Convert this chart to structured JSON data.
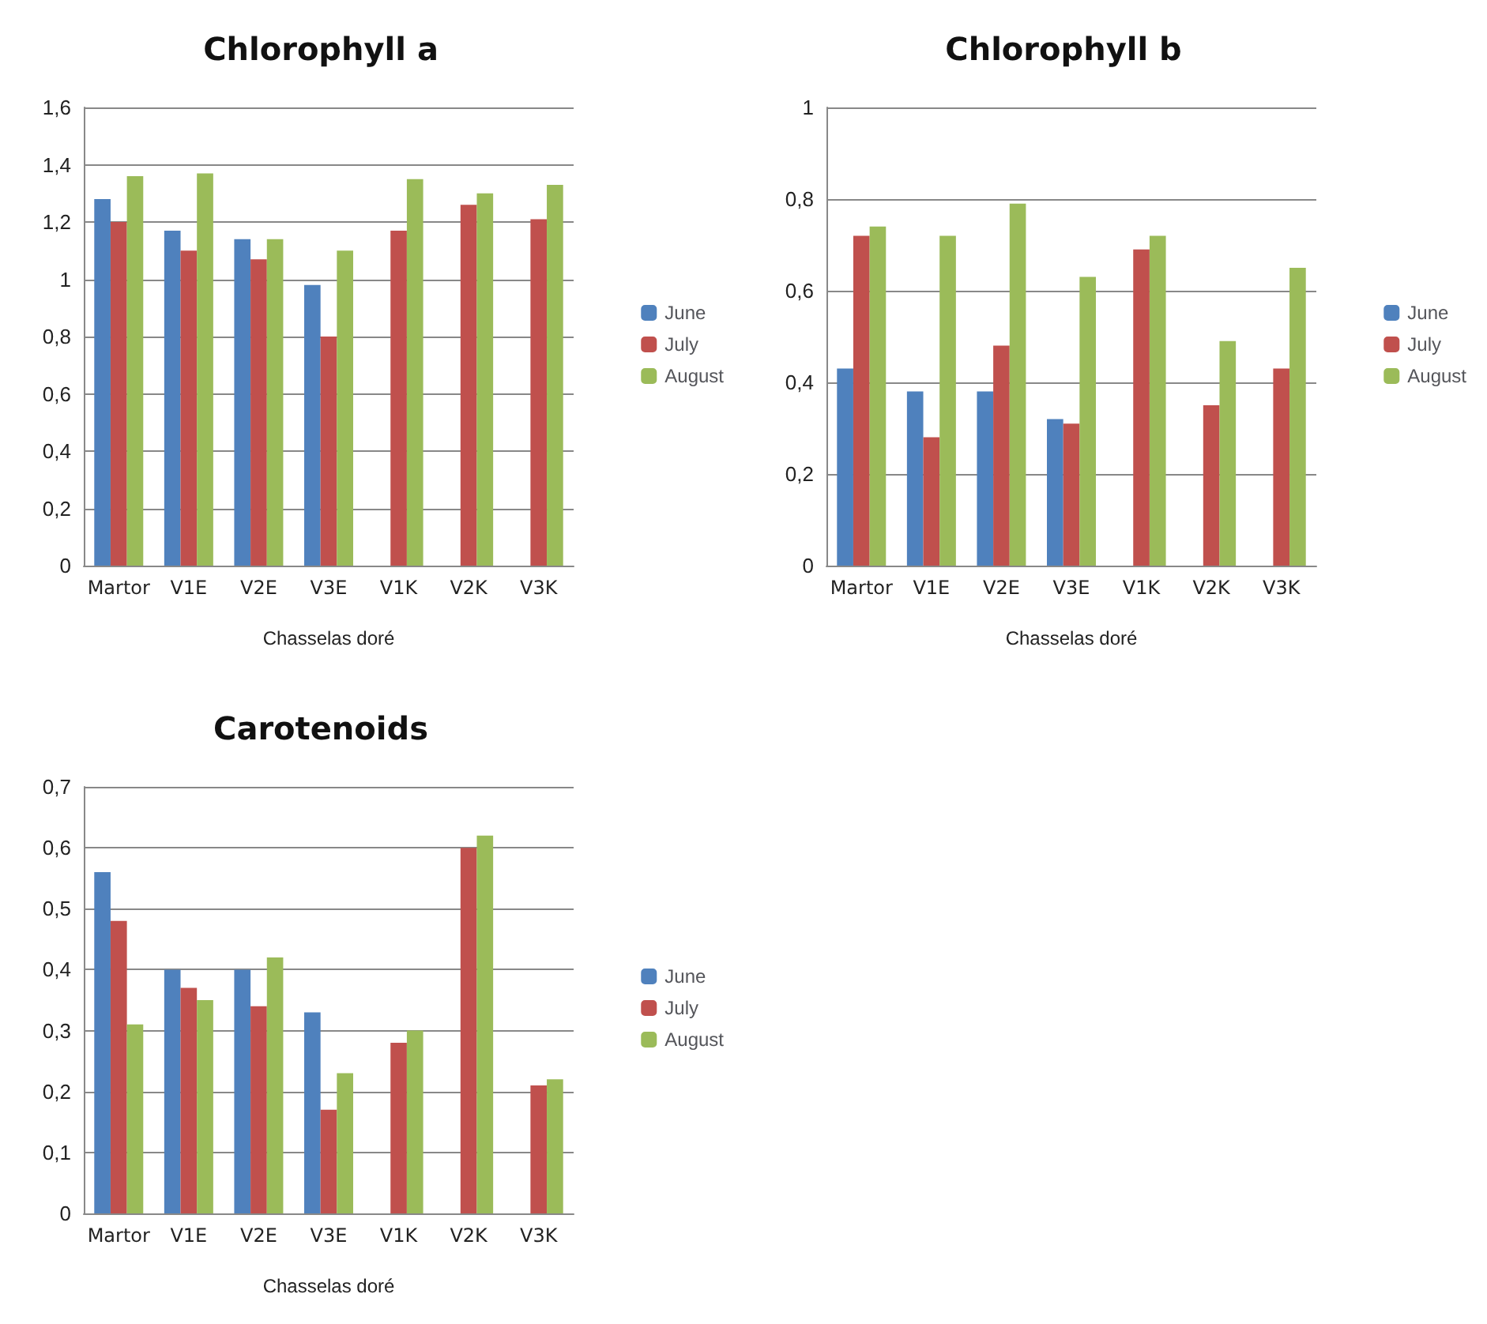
{
  "chart_data": [
    {
      "type": "bar",
      "title": "Chlorophyll a",
      "xlabel": "Chasselas doré",
      "categories": [
        "Martor",
        "V1E",
        "V2E",
        "V3E",
        "V1K",
        "V2K",
        "V3K"
      ],
      "series": [
        {
          "name": "June",
          "color": "#4f81bd",
          "values": [
            1.28,
            1.17,
            1.14,
            0.98,
            null,
            null,
            null
          ]
        },
        {
          "name": "July",
          "color": "#c0504d",
          "values": [
            1.2,
            1.1,
            1.07,
            0.8,
            1.17,
            1.26,
            1.21
          ]
        },
        {
          "name": "August",
          "color": "#9bbb59",
          "values": [
            1.36,
            1.37,
            1.14,
            1.1,
            1.35,
            1.3,
            1.33
          ]
        }
      ],
      "ylim": [
        0,
        1.6
      ],
      "yticks": [
        {
          "value": 0,
          "label": "0"
        },
        {
          "value": 0.2,
          "label": "0,2"
        },
        {
          "value": 0.4,
          "label": "0,4"
        },
        {
          "value": 0.6,
          "label": "0,6"
        },
        {
          "value": 0.8,
          "label": "0,8"
        },
        {
          "value": 1,
          "label": "1"
        },
        {
          "value": 1.2,
          "label": "1,2"
        },
        {
          "value": 1.4,
          "label": "1,4"
        },
        {
          "value": 1.6,
          "label": "1,6"
        }
      ],
      "grid": "y",
      "legend": "right"
    },
    {
      "type": "bar",
      "title": "Chlorophyll b",
      "xlabel": "Chasselas doré",
      "categories": [
        "Martor",
        "V1E",
        "V2E",
        "V3E",
        "V1K",
        "V2K",
        "V3K"
      ],
      "series": [
        {
          "name": "June",
          "color": "#4f81bd",
          "values": [
            0.43,
            0.38,
            0.38,
            0.32,
            null,
            null,
            null
          ]
        },
        {
          "name": "July",
          "color": "#c0504d",
          "values": [
            0.72,
            0.28,
            0.48,
            0.31,
            0.69,
            0.35,
            0.43
          ]
        },
        {
          "name": "August",
          "color": "#9bbb59",
          "values": [
            0.74,
            0.72,
            0.79,
            0.63,
            0.72,
            0.49,
            0.65
          ]
        }
      ],
      "ylim": [
        0,
        1
      ],
      "yticks": [
        {
          "value": 0,
          "label": "0"
        },
        {
          "value": 0.2,
          "label": "0,2"
        },
        {
          "value": 0.4,
          "label": "0,4"
        },
        {
          "value": 0.6,
          "label": "0,6"
        },
        {
          "value": 0.8,
          "label": "0,8"
        },
        {
          "value": 1,
          "label": "1"
        }
      ],
      "grid": "y",
      "legend": "right"
    },
    {
      "type": "bar",
      "title": "Carotenoids",
      "xlabel": "Chasselas doré",
      "categories": [
        "Martor",
        "V1E",
        "V2E",
        "V3E",
        "V1K",
        "V2K",
        "V3K"
      ],
      "series": [
        {
          "name": "June",
          "color": "#4f81bd",
          "values": [
            0.56,
            0.4,
            0.4,
            0.33,
            null,
            null,
            null
          ]
        },
        {
          "name": "July",
          "color": "#c0504d",
          "values": [
            0.48,
            0.37,
            0.34,
            0.17,
            0.28,
            0.6,
            0.21
          ]
        },
        {
          "name": "August",
          "color": "#9bbb59",
          "values": [
            0.31,
            0.35,
            0.42,
            0.23,
            0.3,
            0.62,
            0.22
          ]
        }
      ],
      "ylim": [
        0,
        0.7
      ],
      "yticks": [
        {
          "value": 0,
          "label": "0"
        },
        {
          "value": 0.1,
          "label": "0,1"
        },
        {
          "value": 0.2,
          "label": "0,2"
        },
        {
          "value": 0.3,
          "label": "0,3"
        },
        {
          "value": 0.4,
          "label": "0,4"
        },
        {
          "value": 0.5,
          "label": "0,5"
        },
        {
          "value": 0.6,
          "label": "0,6"
        },
        {
          "value": 0.7,
          "label": "0,7"
        }
      ],
      "grid": "y",
      "legend": "right"
    }
  ]
}
